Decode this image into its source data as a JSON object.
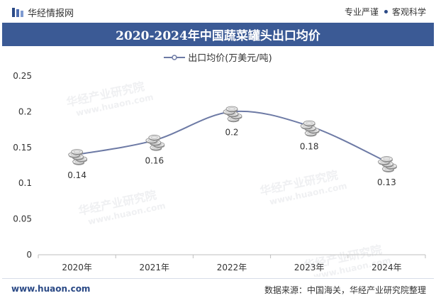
{
  "header": {
    "brand_name": "华经情报网",
    "tagline_left": "专业严谨",
    "tagline_right": "客观科学"
  },
  "title": "2020-2024年中国蔬菜罐头出口均价",
  "watermark": {
    "text": "华经产业研究院",
    "url": "www.huaon.com"
  },
  "footer": {
    "website": "www.huaon.com",
    "source": "数据来源：中国海关，华经产业研究院整理"
  },
  "colors": {
    "line": "#6d7aa5",
    "title_bg": "#3b5a95",
    "brand": "#2b4a86"
  },
  "chart_data": {
    "type": "line",
    "title": "2020-2024年中国蔬菜罐头出口均价",
    "categories": [
      "2020年",
      "2021年",
      "2022年",
      "2023年",
      "2024年"
    ],
    "series": [
      {
        "name": "出口均价(万美元/吨)",
        "values": [
          0.14,
          0.16,
          0.2,
          0.18,
          0.13
        ]
      }
    ],
    "data_labels": [
      "0.14",
      "0.16",
      "0.2",
      "0.18",
      "0.13"
    ],
    "ylim": [
      0,
      0.25
    ],
    "yticks": [
      0,
      0.05,
      0.1,
      0.15,
      0.2,
      0.25
    ],
    "ytick_labels": [
      "0",
      "0.05",
      "0.1",
      "0.15",
      "0.2",
      "0.25"
    ],
    "grid": false,
    "legend_position": "top-center",
    "smooth": true,
    "marker_icon": "coin-stack-icon"
  }
}
